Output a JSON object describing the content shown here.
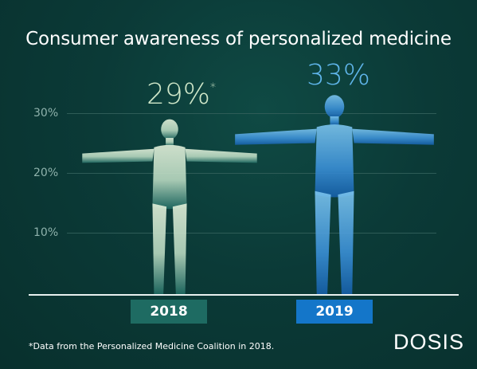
{
  "title": "Consumer awareness of personalized medicine",
  "footnote": "*Data from the Personalized Medicine Coalition in 2018.",
  "logo": "DOSIS",
  "chart_data": {
    "type": "bar",
    "categories": [
      "2018",
      "2019"
    ],
    "values": [
      29,
      33
    ],
    "value_labels": [
      "29%",
      "33%"
    ],
    "value_marks": [
      "*",
      ""
    ],
    "yticks": [
      "10%",
      "20%",
      "30%"
    ],
    "ylim": [
      0,
      30
    ],
    "grid": true,
    "colors": {
      "2018": "#cfe7c9",
      "2019": "#4aa6df",
      "cat_2018": "#1e6b62",
      "cat_2019": "#1476c9"
    }
  }
}
